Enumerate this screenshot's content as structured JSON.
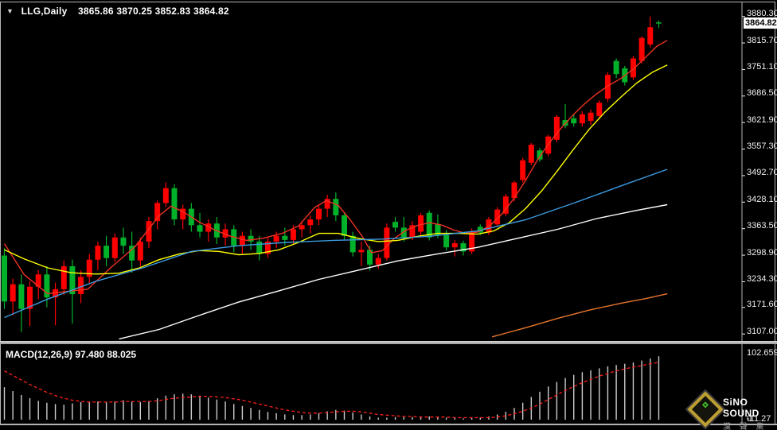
{
  "window": {
    "symbol_period": "LLG,Daily",
    "ohlc_text": "3865.86 3870.25 3852.83 3864.82",
    "dropdown_icon": "symbol-marker-triangle"
  },
  "price_axis": {
    "tick_labels": [
      "3880.30",
      "3815.70",
      "3751.10",
      "3686.50",
      "3621.90",
      "3557.30",
      "3492.70",
      "3428.10",
      "3363.50",
      "3298.90",
      "3234.30",
      "3171.60",
      "3107.00"
    ],
    "current_price": "3864.82"
  },
  "macd_panel": {
    "label_text": "MACD(12,26,9) 97.480 88.025",
    "axis_labels": [
      "102.659",
      "0",
      "-11.27"
    ]
  },
  "logo": {
    "line1": "SiNO SOUND",
    "line2": "漢 聲 集 團"
  },
  "colors": {
    "background": "#000000",
    "bull": "#fd0000",
    "bear": "#00b22a",
    "ma_fast": "#ee3322",
    "ma_mid": "#ffff00",
    "ma_slow": "#3c9be0",
    "ma_slower": "#ffffff",
    "ma_longest": "#e8762c",
    "histogram": "#cdcdcd",
    "signal": "#ff1e1e",
    "axis_text": "#f0f0f0",
    "frame": "#b4b4b4",
    "price_box_bg": "#ffffff"
  },
  "chart_data": {
    "type": "candlestick",
    "symbol": "LLG",
    "timeframe": "Daily",
    "title": "LLG,Daily 3865.86 3870.25 3852.83 3864.82",
    "legend_position": "none",
    "grid": false,
    "price_axis": {
      "visible_max": 3901,
      "visible_min": 3088,
      "ticks": [
        3880.3,
        3815.7,
        3751.1,
        3686.5,
        3621.9,
        3557.3,
        3492.7,
        3428.1,
        3363.5,
        3298.9,
        3234.3,
        3171.6,
        3107.0
      ],
      "current_price": 3864.82
    },
    "current_bar": {
      "open": 3865.86,
      "high": 3870.25,
      "low": 3852.83,
      "close": 3864.82
    },
    "candles_ohlc": [
      [
        3298,
        3316,
        3168,
        3186
      ],
      [
        3186,
        3242,
        3152,
        3228
      ],
      [
        3228,
        3252,
        3112,
        3168
      ],
      [
        3168,
        3236,
        3126,
        3222
      ],
      [
        3222,
        3262,
        3192,
        3252
      ],
      [
        3252,
        3272,
        3172,
        3196
      ],
      [
        3196,
        3232,
        3128,
        3216
      ],
      [
        3216,
        3286,
        3202,
        3272
      ],
      [
        3272,
        3288,
        3132,
        3204
      ],
      [
        3204,
        3262,
        3182,
        3246
      ],
      [
        3246,
        3302,
        3228,
        3288
      ],
      [
        3288,
        3332,
        3262,
        3322
      ],
      [
        3322,
        3346,
        3272,
        3292
      ],
      [
        3292,
        3352,
        3282,
        3342
      ],
      [
        3342,
        3366,
        3302,
        3322
      ],
      [
        3322,
        3356,
        3256,
        3286
      ],
      [
        3286,
        3342,
        3272,
        3332
      ],
      [
        3332,
        3392,
        3316,
        3382
      ],
      [
        3382,
        3432,
        3362,
        3426
      ],
      [
        3426,
        3476,
        3416,
        3462
      ],
      [
        3462,
        3472,
        3372,
        3386
      ],
      [
        3386,
        3422,
        3362,
        3412
      ],
      [
        3412,
        3426,
        3356,
        3372
      ],
      [
        3372,
        3402,
        3342,
        3356
      ],
      [
        3356,
        3386,
        3332,
        3376
      ],
      [
        3376,
        3392,
        3326,
        3342
      ],
      [
        3342,
        3376,
        3322,
        3362
      ],
      [
        3362,
        3372,
        3306,
        3322
      ],
      [
        3322,
        3356,
        3302,
        3346
      ],
      [
        3346,
        3362,
        3312,
        3332
      ],
      [
        3332,
        3346,
        3286,
        3302
      ],
      [
        3302,
        3342,
        3292,
        3332
      ],
      [
        3332,
        3356,
        3316,
        3346
      ],
      [
        3346,
        3366,
        3322,
        3336
      ],
      [
        3336,
        3372,
        3326,
        3362
      ],
      [
        3362,
        3382,
        3342,
        3372
      ],
      [
        3372,
        3396,
        3352,
        3386
      ],
      [
        3386,
        3422,
        3372,
        3412
      ],
      [
        3412,
        3446,
        3392,
        3436
      ],
      [
        3436,
        3452,
        3382,
        3396
      ],
      [
        3396,
        3402,
        3336,
        3346
      ],
      [
        3346,
        3356,
        3296,
        3306
      ],
      [
        3306,
        3332,
        3272,
        3312
      ],
      [
        3312,
        3322,
        3262,
        3276
      ],
      [
        3276,
        3302,
        3266,
        3292
      ],
      [
        3292,
        3376,
        3286,
        3366
      ],
      [
        3380,
        3392,
        3356,
        3366
      ],
      [
        3366,
        3392,
        3332,
        3342
      ],
      [
        3342,
        3382,
        3336,
        3372
      ],
      [
        3356,
        3402,
        3346,
        3396
      ],
      [
        3402,
        3408,
        3335,
        3342
      ],
      [
        3375,
        3398,
        3340,
        3348
      ],
      [
        3348,
        3360,
        3310,
        3318
      ],
      [
        3318,
        3336,
        3296,
        3328
      ],
      [
        3328,
        3334,
        3298,
        3308
      ],
      [
        3308,
        3364,
        3302,
        3356
      ],
      [
        3368,
        3374,
        3348,
        3354
      ],
      [
        3354,
        3392,
        3348,
        3386
      ],
      [
        3374,
        3416,
        3368,
        3410
      ],
      [
        3400,
        3448,
        3394,
        3442
      ],
      [
        3438,
        3480,
        3430,
        3476
      ],
      [
        3482,
        3536,
        3476,
        3530
      ],
      [
        3524,
        3572,
        3518,
        3568
      ],
      [
        3554,
        3560,
        3526,
        3532
      ],
      [
        3546,
        3592,
        3540,
        3588
      ],
      [
        3580,
        3640,
        3574,
        3636
      ],
      [
        3628,
        3667,
        3608,
        3614
      ],
      [
        3632,
        3642,
        3612,
        3620
      ],
      [
        3620,
        3650,
        3612,
        3642
      ],
      [
        3626,
        3654,
        3616,
        3646
      ],
      [
        3638,
        3676,
        3630,
        3670
      ],
      [
        3680,
        3744,
        3672,
        3738
      ],
      [
        3772,
        3778,
        3730,
        3740
      ],
      [
        3754,
        3760,
        3712,
        3720
      ],
      [
        3732,
        3784,
        3726,
        3778
      ],
      [
        3772,
        3832,
        3766,
        3828
      ],
      [
        3812,
        3880,
        3804,
        3854
      ],
      [
        3865.86,
        3870.25,
        3852.83,
        3864.82
      ]
    ],
    "moving_averages": [
      {
        "name": "ma-fast-red",
        "color_key": "ma_fast",
        "points": [
          [
            0,
            3327
          ],
          [
            2.3,
            3252
          ],
          [
            5.1,
            3205
          ],
          [
            7.9,
            3212
          ],
          [
            9.8,
            3216
          ],
          [
            12.6,
            3270
          ],
          [
            15.4,
            3320
          ],
          [
            18.2,
            3395
          ],
          [
            19.6,
            3418
          ],
          [
            21,
            3405
          ],
          [
            22.9,
            3380
          ],
          [
            24.8,
            3360
          ],
          [
            26.6,
            3345
          ],
          [
            28.5,
            3335
          ],
          [
            30.4,
            3340
          ],
          [
            32.7,
            3352
          ],
          [
            34.6,
            3370
          ],
          [
            36.5,
            3415
          ],
          [
            37.9,
            3432
          ],
          [
            39.3,
            3420
          ],
          [
            40.7,
            3385
          ],
          [
            42.1,
            3345
          ],
          [
            43.2,
            3305
          ],
          [
            44.5,
            3310
          ],
          [
            45.9,
            3340
          ],
          [
            47.3,
            3360
          ],
          [
            48.7,
            3372
          ],
          [
            50.1,
            3378
          ],
          [
            51.5,
            3372
          ],
          [
            52.9,
            3360
          ],
          [
            54.3,
            3352
          ],
          [
            55.7,
            3355
          ],
          [
            57.1,
            3370
          ],
          [
            58.5,
            3398
          ],
          [
            59.9,
            3435
          ],
          [
            61.3,
            3480
          ],
          [
            62.7,
            3530
          ],
          [
            64.1,
            3572
          ],
          [
            65.5,
            3608
          ],
          [
            66.9,
            3640
          ],
          [
            68.3,
            3668
          ],
          [
            69.7,
            3692
          ],
          [
            71.1,
            3712
          ],
          [
            72.6,
            3730
          ],
          [
            74,
            3752
          ],
          [
            75.4,
            3780
          ],
          [
            76.8,
            3808
          ],
          [
            78,
            3822
          ]
        ]
      },
      {
        "name": "ma-mid-yellow",
        "color_key": "ma_mid",
        "points": [
          [
            0,
            3312
          ],
          [
            2.3,
            3290
          ],
          [
            5.1,
            3268
          ],
          [
            7.9,
            3256
          ],
          [
            10.7,
            3253
          ],
          [
            13.5,
            3255
          ],
          [
            15.9,
            3268
          ],
          [
            18.2,
            3288
          ],
          [
            20.6,
            3302
          ],
          [
            22.9,
            3310
          ],
          [
            25.2,
            3308
          ],
          [
            27.6,
            3300
          ],
          [
            29.9,
            3303
          ],
          [
            32.3,
            3312
          ],
          [
            34.6,
            3330
          ],
          [
            37,
            3352
          ],
          [
            39.3,
            3352
          ],
          [
            41.6,
            3340
          ],
          [
            44,
            3332
          ],
          [
            46.3,
            3335
          ],
          [
            48.7,
            3345
          ],
          [
            51,
            3352
          ],
          [
            53.4,
            3352
          ],
          [
            55.7,
            3350
          ],
          [
            57.6,
            3358
          ],
          [
            59.4,
            3378
          ],
          [
            61.3,
            3412
          ],
          [
            63.2,
            3455
          ],
          [
            65.1,
            3505
          ],
          [
            66.9,
            3555
          ],
          [
            68.8,
            3605
          ],
          [
            70.7,
            3648
          ],
          [
            72.6,
            3685
          ],
          [
            74.4,
            3718
          ],
          [
            76.3,
            3745
          ],
          [
            78,
            3762
          ]
        ]
      },
      {
        "name": "ma-slow-blue",
        "color_key": "ma_slow",
        "points": [
          [
            0,
            3147
          ],
          [
            5.1,
            3192
          ],
          [
            10.7,
            3235
          ],
          [
            16.3,
            3268
          ],
          [
            22,
            3308
          ],
          [
            27.6,
            3322
          ],
          [
            33.2,
            3330
          ],
          [
            38.8,
            3335
          ],
          [
            44.5,
            3338
          ],
          [
            50.1,
            3345
          ],
          [
            55.7,
            3358
          ],
          [
            61.3,
            3385
          ],
          [
            66.9,
            3425
          ],
          [
            72.6,
            3468
          ],
          [
            78,
            3508
          ]
        ]
      },
      {
        "name": "ma-slower-white",
        "color_key": "ma_slower",
        "points": [
          [
            13.5,
            3095
          ],
          [
            18.2,
            3118
          ],
          [
            22.9,
            3152
          ],
          [
            27.6,
            3185
          ],
          [
            32.3,
            3212
          ],
          [
            37,
            3240
          ],
          [
            41.6,
            3262
          ],
          [
            46.3,
            3285
          ],
          [
            51,
            3302
          ],
          [
            55.7,
            3318
          ],
          [
            60.4,
            3340
          ],
          [
            65.1,
            3362
          ],
          [
            69.7,
            3388
          ],
          [
            74.4,
            3408
          ],
          [
            78,
            3422
          ]
        ]
      },
      {
        "name": "ma-longest-orange",
        "color_key": "ma_longest",
        "points": [
          [
            57.4,
            3100
          ],
          [
            61.3,
            3122
          ],
          [
            65.1,
            3145
          ],
          [
            68.8,
            3165
          ],
          [
            72.6,
            3182
          ],
          [
            75.4,
            3193
          ],
          [
            78,
            3205
          ]
        ]
      }
    ],
    "macd": {
      "params": "12,26,9",
      "macd_value": 97.48,
      "signal_value": 88.025,
      "axis_max": 102.659,
      "axis_min": -11.27,
      "histogram": [
        50,
        44,
        38,
        33,
        29,
        26,
        24,
        23,
        25,
        27,
        28,
        28,
        27,
        28,
        30,
        28,
        27,
        29,
        33,
        37,
        39,
        40,
        39,
        37,
        34,
        31,
        28,
        24,
        21,
        18,
        15,
        12,
        10,
        8,
        7,
        7,
        8,
        10,
        13,
        15,
        14,
        11,
        8,
        5,
        3,
        3,
        4,
        4,
        4,
        5,
        5,
        4,
        3,
        3,
        2,
        3,
        3,
        5,
        8,
        12,
        18,
        26,
        35,
        43,
        51,
        58,
        64,
        69,
        73,
        76,
        79,
        82,
        84,
        86,
        88,
        91,
        94,
        97.48
      ],
      "signal_line": [
        75,
        68,
        61,
        54,
        48,
        42,
        37,
        33,
        30,
        28,
        27,
        27,
        27,
        27,
        28,
        28,
        28,
        28,
        29,
        31,
        33,
        34,
        35,
        36,
        36,
        35,
        34,
        32,
        30,
        27,
        24,
        21,
        18,
        15,
        13,
        11,
        10,
        10,
        11,
        12,
        13,
        13,
        12,
        10,
        8,
        7,
        6,
        5,
        5,
        4,
        4,
        4,
        4,
        3,
        3,
        3,
        3,
        3,
        4,
        6,
        9,
        13,
        18,
        24,
        31,
        38,
        45,
        51,
        57,
        62,
        67,
        71,
        75,
        78,
        81,
        83,
        86,
        88.03
      ]
    }
  }
}
